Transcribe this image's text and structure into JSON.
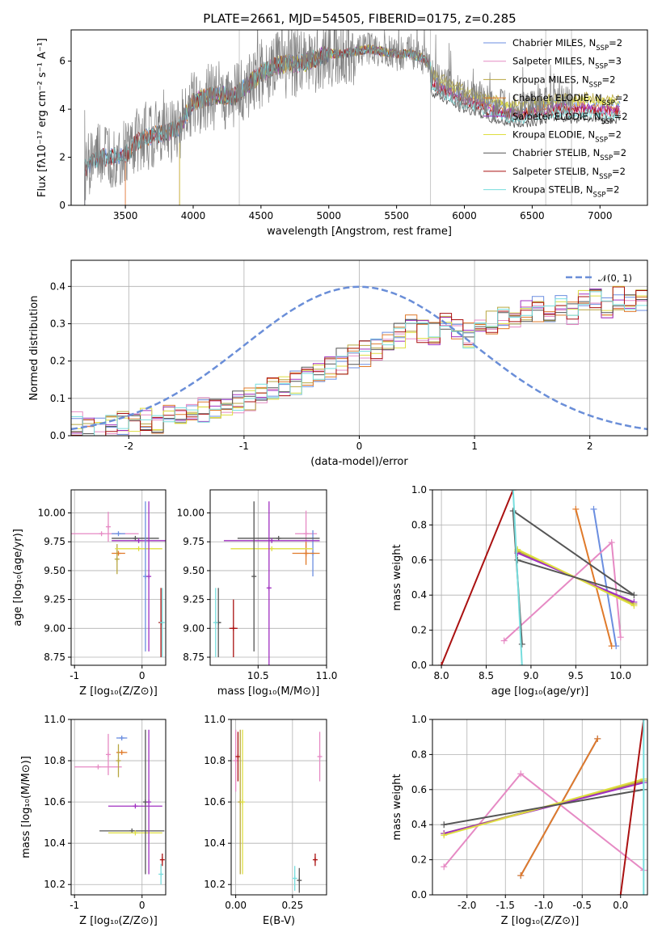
{
  "title": "PLATE=2661, MJD=54505, FIBERID=0175, z=0.285",
  "colors": {
    "chabrier_miles": "#6b8ee0",
    "salpeter_miles": "#e68ac4",
    "kroupa_miles": "#b8a640",
    "chabrier_elodie": "#e07a2a",
    "salpeter_elodie": "#a030c0",
    "kroupa_elodie": "#dede40",
    "chabrier_stelib": "#555555",
    "salpeter_stelib": "#aa1111",
    "kroupa_stelib": "#77dddd",
    "data": "#808080",
    "gaussian": "#6a8ed8"
  },
  "chart_data": [
    {
      "type": "line",
      "name": "spectrum",
      "xlabel": "wavelength [Angstrom, rest frame]",
      "ylabel": "Flux [fλ10⁻¹⁷ erg cm⁻² s⁻¹ A⁻¹]",
      "xlim": [
        3100,
        7350
      ],
      "ylim": [
        0,
        7.3
      ],
      "xticks": [
        3500,
        4000,
        4500,
        5000,
        5500,
        6000,
        6500,
        7000
      ],
      "yticks": [
        0,
        2,
        4,
        6
      ],
      "legend_position": "top-right",
      "legend": [
        {
          "label": "Chabrier MILES, N",
          "sub": "SSP",
          "suffix": "=2",
          "color_key": "chabrier_miles"
        },
        {
          "label": "Salpeter MILES, N",
          "sub": "SSP",
          "suffix": "=3",
          "color_key": "salpeter_miles"
        },
        {
          "label": "Kroupa MILES, N",
          "sub": "SSP",
          "suffix": "=2",
          "color_key": "kroupa_miles"
        },
        {
          "label": "Chabrier ELODIE, N",
          "sub": "SSP",
          "suffix": "=2",
          "color_key": "chabrier_elodie"
        },
        {
          "label": "Salpeter ELODIE, N",
          "sub": "SSP",
          "suffix": "=2",
          "color_key": "salpeter_elodie"
        },
        {
          "label": "Kroupa ELODIE, N",
          "sub": "SSP",
          "suffix": "=2",
          "color_key": "kroupa_elodie"
        },
        {
          "label": "Chabrier STELIB, N",
          "sub": "SSP",
          "suffix": "=2",
          "color_key": "chabrier_stelib"
        },
        {
          "label": "Salpeter STELIB, N",
          "sub": "SSP",
          "suffix": "=2",
          "color_key": "salpeter_stelib"
        },
        {
          "label": "Kroupa STELIB, N",
          "sub": "SSP",
          "suffix": "=2",
          "color_key": "kroupa_stelib"
        }
      ],
      "continuum": {
        "x": [
          3200,
          3300,
          3400,
          3500,
          3600,
          3700,
          3800,
          3900,
          4000,
          4100,
          4200,
          4300,
          4400,
          4500,
          4600,
          4700,
          4800,
          4900,
          5000,
          5100,
          5200,
          5300,
          5400,
          5500,
          5600,
          5700,
          5750,
          5800,
          5900,
          6000,
          6100,
          6200,
          6300,
          6400,
          6500,
          6600,
          6700,
          6800,
          6900,
          7000,
          7100
        ],
        "y": [
          1.5,
          2.0,
          2.0,
          2.1,
          2.7,
          2.9,
          3.0,
          3.3,
          4.3,
          4.5,
          4.6,
          4.5,
          5.0,
          5.5,
          5.8,
          5.9,
          5.9,
          6.1,
          6.3,
          6.3,
          6.4,
          6.5,
          6.4,
          6.3,
          6.3,
          6.1,
          5.8,
          5.6,
          5.3,
          5.0,
          4.9,
          4.6,
          4.5,
          4.4,
          4.5,
          4.6,
          4.7,
          4.6,
          4.7,
          4.6,
          4.6
        ]
      },
      "model_offsets": {
        "after_5750": [
          0.8,
          0.35,
          1.2,
          0.6,
          0.5,
          1.0,
          -0.2,
          0.3,
          0.1
        ]
      },
      "data_start": {
        "data": 3200,
        "chabrier_miles": 3200,
        "salpeter_miles": 3500,
        "kroupa_miles": 3900,
        "chabrier_elodie": 3500,
        "salpeter_elodie": 3900,
        "kroupa_elodie": 3900,
        "chabrier_stelib": 3200,
        "salpeter_stelib": 3200,
        "kroupa_stelib": 3200
      },
      "data_end": 6800,
      "masked_lines": [
        4340,
        5750,
        6600,
        6790
      ]
    },
    {
      "type": "histogram",
      "name": "residuals",
      "xlabel": "(data-model)/error",
      "ylabel": "Normed distribution",
      "xlim": [
        -2.5,
        2.5
      ],
      "ylim": [
        0,
        0.47
      ],
      "xticks": [
        -2,
        -1,
        0,
        1,
        2
      ],
      "yticks": [
        0.0,
        0.1,
        0.2,
        0.3,
        0.4
      ],
      "grid": true,
      "legend_position": "top-right",
      "gaussian_label": "𝒩(0, 1)",
      "bin_width": 0.1,
      "bin_start": -2.5,
      "profile": [
        0.03,
        0.02,
        0.02,
        0.02,
        0.03,
        0.03,
        0.04,
        0.04,
        0.05,
        0.05,
        0.06,
        0.07,
        0.08,
        0.08,
        0.09,
        0.1,
        0.11,
        0.12,
        0.13,
        0.14,
        0.16,
        0.17,
        0.18,
        0.2,
        0.21,
        0.22,
        0.23,
        0.25,
        0.27,
        0.29,
        0.28,
        0.27,
        0.3,
        0.29,
        0.27,
        0.3,
        0.3,
        0.31,
        0.32,
        0.33,
        0.34,
        0.34,
        0.35,
        0.33,
        0.36,
        0.36,
        0.34,
        0.37,
        0.36,
        0.37,
        0.37,
        0.37,
        0.36,
        0.33,
        0.36,
        0.34,
        0.35,
        0.37,
        0.33,
        0.32,
        0.34,
        0.33,
        0.32,
        0.31,
        0.28,
        0.28,
        0.27,
        0.25,
        0.26,
        0.24,
        0.22,
        0.21,
        0.2,
        0.19,
        0.17,
        0.16,
        0.15,
        0.13,
        0.12,
        0.1,
        0.1,
        0.09,
        0.08,
        0.08,
        0.07,
        0.07,
        0.06,
        0.06,
        0.05,
        0.05,
        0.04,
        0.04,
        0.04,
        0.03,
        0.03,
        0.03,
        0.03,
        0.03,
        0.02,
        0.02
      ]
    },
    {
      "type": "scatter",
      "name": "age-vs-Z",
      "xlabel": "Z [log₁₀(Z/Z⊙)]",
      "ylabel": "age  [log₁₀(age/yr)]",
      "xlim": [
        -1.05,
        0.35
      ],
      "ylim": [
        8.68,
        10.2
      ],
      "xticks": [
        -1,
        0
      ],
      "yticks": [
        8.75,
        9.0,
        9.25,
        9.5,
        9.75,
        10.0
      ],
      "grid": true,
      "errorbars": [
        {
          "color_key": "salpeter_miles",
          "x": -0.6,
          "xerr": 0.55,
          "y": 9.82,
          "yerr": 0.0
        },
        {
          "color_key": "salpeter_miles",
          "x": -0.5,
          "xerr": 0.0,
          "y": 9.88,
          "yerr": 0.13
        },
        {
          "color_key": "chabrier_miles",
          "x": -0.35,
          "xerr": 0.1,
          "y": 9.82,
          "yerr": 0.0
        },
        {
          "color_key": "chabrier_elodie",
          "x": -0.35,
          "xerr": 0.1,
          "y": 9.65,
          "yerr": 0.0
        },
        {
          "color_key": "kroupa_miles",
          "x": -0.37,
          "xerr": 0.0,
          "y": 9.6,
          "yerr": 0.13
        },
        {
          "color_key": "chabrier_stelib",
          "x": -0.1,
          "xerr": 0.35,
          "y": 9.78,
          "yerr": 0.0
        },
        {
          "color_key": "salpeter_elodie",
          "x": -0.05,
          "xerr": 0.4,
          "y": 9.76,
          "yerr": 0.0
        },
        {
          "color_key": "kroupa_elodie",
          "x": -0.05,
          "xerr": 0.35,
          "y": 9.69,
          "yerr": 0.0
        },
        {
          "color_key": "chabrier_miles",
          "x": 0.05,
          "xerr": 0.0,
          "y": 9.45,
          "yerr": 0.65
        },
        {
          "color_key": "salpeter_elodie",
          "x": 0.1,
          "xerr": 0.0,
          "y": 9.45,
          "yerr": 0.65
        },
        {
          "color_key": "salpeter_stelib",
          "x": 0.28,
          "xerr": 0.0,
          "y": 9.05,
          "yerr": 0.3
        },
        {
          "color_key": "kroupa_stelib",
          "x": 0.3,
          "xerr": 0.0,
          "y": 9.05,
          "yerr": 0.3
        }
      ]
    },
    {
      "type": "scatter",
      "name": "age-vs-mass",
      "xlabel": "mass [log₁₀(M/M⊙)]",
      "xlim": [
        10.15,
        11.0
      ],
      "ylim": [
        8.68,
        10.2
      ],
      "xticks": [
        10.5,
        11.0
      ],
      "yticks": [
        8.75,
        9.0,
        9.25,
        9.5,
        9.75,
        10.0
      ],
      "grid": true,
      "errorbars": [
        {
          "color_key": "salpeter_miles",
          "x": 10.85,
          "xerr": 0.08,
          "y": 9.82,
          "yerr": 0.2
        },
        {
          "color_key": "chabrier_miles",
          "x": 10.9,
          "xerr": 0.0,
          "y": 9.65,
          "yerr": 0.2
        },
        {
          "color_key": "chabrier_elodie",
          "x": 10.85,
          "xerr": 0.1,
          "y": 9.65,
          "yerr": 0.1
        },
        {
          "color_key": "chabrier_stelib",
          "x": 10.65,
          "xerr": 0.3,
          "y": 9.78,
          "yerr": 0.0
        },
        {
          "color_key": "salpeter_elodie",
          "x": 10.6,
          "xerr": 0.35,
          "y": 9.76,
          "yerr": 0.0
        },
        {
          "color_key": "kroupa_elodie",
          "x": 10.6,
          "xerr": 0.3,
          "y": 9.69,
          "yerr": 0.0
        },
        {
          "color_key": "chabrier_stelib",
          "x": 10.47,
          "xerr": 0.0,
          "y": 9.45,
          "yerr": 0.65
        },
        {
          "color_key": "salpeter_elodie",
          "x": 10.58,
          "xerr": 0.0,
          "y": 9.35,
          "yerr": 0.75
        },
        {
          "color_key": "salpeter_stelib",
          "x": 10.32,
          "xerr": 0.03,
          "y": 9.0,
          "yerr": 0.25
        },
        {
          "color_key": "chabrier_stelib",
          "x": 10.21,
          "xerr": 0.02,
          "y": 9.05,
          "yerr": 0.3
        },
        {
          "color_key": "kroupa_stelib",
          "x": 10.19,
          "xerr": 0.0,
          "y": 9.05,
          "yerr": 0.3
        }
      ]
    },
    {
      "type": "line",
      "name": "mass-weight-vs-age",
      "xlabel": "age  [log₁₀(age/yr)]",
      "ylabel": "mass weight",
      "xlim": [
        7.9,
        10.3
      ],
      "ylim": [
        0.0,
        1.0
      ],
      "xticks": [
        8.0,
        8.5,
        9.0,
        9.5,
        10.0
      ],
      "yticks": [
        0.0,
        0.2,
        0.4,
        0.6,
        0.8,
        1.0
      ],
      "grid": true,
      "series": [
        {
          "color_key": "chabrier_miles",
          "x": [
            9.7,
            9.95
          ],
          "y": [
            0.89,
            0.11
          ]
        },
        {
          "color_key": "salpeter_miles",
          "x": [
            8.7,
            9.9,
            10.0
          ],
          "y": [
            0.14,
            0.7,
            0.16
          ]
        },
        {
          "color_key": "kroupa_miles",
          "x": [
            8.85,
            10.15
          ],
          "y": [
            0.65,
            0.35
          ]
        },
        {
          "color_key": "chabrier_elodie",
          "x": [
            9.5,
            9.9
          ],
          "y": [
            0.89,
            0.11
          ]
        },
        {
          "color_key": "salpeter_elodie",
          "x": [
            8.85,
            10.15
          ],
          "y": [
            0.64,
            0.36
          ]
        },
        {
          "color_key": "kroupa_elodie",
          "x": [
            8.85,
            10.15
          ],
          "y": [
            0.66,
            0.34
          ]
        },
        {
          "color_key": "chabrier_stelib",
          "x": [
            8.85,
            10.15,
            8.8,
            8.9
          ],
          "y": [
            0.6,
            0.4,
            0.88,
            0.12
          ]
        },
        {
          "color_key": "salpeter_stelib",
          "x": [
            8.0,
            8.8
          ],
          "y": [
            0.0,
            1.0
          ]
        },
        {
          "color_key": "kroupa_stelib",
          "x": [
            8.8,
            8.9
          ],
          "y": [
            1.0,
            0.0
          ]
        }
      ]
    },
    {
      "type": "scatter",
      "name": "mass-vs-Z",
      "xlabel": "Z [log₁₀(Z/Z⊙)]",
      "ylabel": "mass [log₁₀(M/M⊙)]",
      "xlim": [
        -1.05,
        0.35
      ],
      "ylim": [
        10.15,
        11.0
      ],
      "xticks": [
        -1,
        0
      ],
      "yticks": [
        10.2,
        10.4,
        10.6,
        10.8,
        11.0
      ],
      "grid": true,
      "errorbars": [
        {
          "color_key": "salpeter_miles",
          "x": -0.65,
          "xerr": 0.35,
          "y": 10.77,
          "yerr": 0.0
        },
        {
          "color_key": "salpeter_miles",
          "x": -0.5,
          "xerr": 0.0,
          "y": 10.83,
          "yerr": 0.1
        },
        {
          "color_key": "chabrier_miles",
          "x": -0.3,
          "xerr": 0.08,
          "y": 10.91,
          "yerr": 0.0
        },
        {
          "color_key": "chabrier_elodie",
          "x": -0.3,
          "xerr": 0.08,
          "y": 10.84,
          "yerr": 0.0
        },
        {
          "color_key": "kroupa_miles",
          "x": -0.35,
          "xerr": 0.0,
          "y": 10.8,
          "yerr": 0.08
        },
        {
          "color_key": "salpeter_elodie",
          "x": -0.1,
          "xerr": 0.4,
          "y": 10.58,
          "yerr": 0.0
        },
        {
          "color_key": "chabrier_stelib",
          "x": -0.15,
          "xerr": 0.48,
          "y": 10.46,
          "yerr": 0.0
        },
        {
          "color_key": "kroupa_elodie",
          "x": -0.1,
          "xerr": 0.4,
          "y": 10.45,
          "yerr": 0.0
        },
        {
          "color_key": "chabrier_stelib",
          "x": 0.05,
          "xerr": 0.0,
          "y": 10.6,
          "yerr": 0.35
        },
        {
          "color_key": "salpeter_elodie",
          "x": 0.1,
          "xerr": 0.0,
          "y": 10.6,
          "yerr": 0.35
        },
        {
          "color_key": "salpeter_stelib",
          "x": 0.3,
          "xerr": 0.0,
          "y": 10.32,
          "yerr": 0.03
        },
        {
          "color_key": "kroupa_stelib",
          "x": 0.28,
          "xerr": 0.0,
          "y": 10.25,
          "yerr": 0.05
        }
      ]
    },
    {
      "type": "scatter",
      "name": "mass-vs-EBV",
      "xlabel": "E(B-V)",
      "xlim": [
        -0.02,
        0.4
      ],
      "ylim": [
        10.15,
        11.0
      ],
      "xticks": [
        0.0,
        0.25
      ],
      "yticks": [
        10.2,
        10.4,
        10.6,
        10.8,
        11.0
      ],
      "grid": true,
      "errorbars": [
        {
          "color_key": "salpeter_miles",
          "x": 0.0,
          "xerr": 0.0,
          "y": 10.8,
          "yerr": 0.15
        },
        {
          "color_key": "salpeter_stelib",
          "x": 0.01,
          "xerr": 0.0,
          "y": 10.82,
          "yerr": 0.12
        },
        {
          "color_key": "kroupa_miles",
          "x": 0.02,
          "xerr": 0.0,
          "y": 10.6,
          "yerr": 0.35
        },
        {
          "color_key": "kroupa_elodie",
          "x": 0.03,
          "xerr": 0.0,
          "y": 10.6,
          "yerr": 0.35
        },
        {
          "color_key": "salpeter_miles",
          "x": 0.37,
          "xerr": 0.0,
          "y": 10.82,
          "yerr": 0.12
        },
        {
          "color_key": "salpeter_stelib",
          "x": 0.35,
          "xerr": 0.0,
          "y": 10.32,
          "yerr": 0.03
        },
        {
          "color_key": "kroupa_stelib",
          "x": 0.26,
          "xerr": 0.0,
          "y": 10.23,
          "yerr": 0.06
        },
        {
          "color_key": "chabrier_stelib",
          "x": 0.28,
          "xerr": 0.0,
          "y": 10.22,
          "yerr": 0.06
        }
      ]
    },
    {
      "type": "line",
      "name": "mass-weight-vs-Z",
      "xlabel": "Z [log₁₀(Z/Z⊙)]",
      "ylabel": "mass weight",
      "xlim": [
        -2.45,
        0.35
      ],
      "ylim": [
        0.0,
        1.0
      ],
      "xticks": [
        -2.0,
        -1.5,
        -1.0,
        -0.5,
        0.0
      ],
      "yticks": [
        0.0,
        0.2,
        0.4,
        0.6,
        0.8,
        1.0
      ],
      "grid": true,
      "series": [
        {
          "color_key": "chabrier_miles",
          "x": [
            -1.3,
            -0.3
          ],
          "y": [
            0.11,
            0.89
          ]
        },
        {
          "color_key": "salpeter_miles",
          "x": [
            -2.3,
            -1.3,
            0.3
          ],
          "y": [
            0.16,
            0.69,
            0.14
          ]
        },
        {
          "color_key": "kroupa_miles",
          "x": [
            -2.3,
            0.3
          ],
          "y": [
            0.35,
            0.65
          ]
        },
        {
          "color_key": "chabrier_elodie",
          "x": [
            -1.3,
            -0.3
          ],
          "y": [
            0.11,
            0.89
          ]
        },
        {
          "color_key": "salpeter_elodie",
          "x": [
            -2.3,
            0.3
          ],
          "y": [
            0.35,
            0.64
          ]
        },
        {
          "color_key": "kroupa_elodie",
          "x": [
            -2.3,
            0.3
          ],
          "y": [
            0.34,
            0.66
          ]
        },
        {
          "color_key": "chabrier_stelib",
          "x": [
            -2.3,
            0.3
          ],
          "y": [
            0.4,
            0.6
          ]
        },
        {
          "color_key": "salpeter_stelib",
          "x": [
            0.0,
            0.3
          ],
          "y": [
            0.0,
            1.0
          ]
        },
        {
          "color_key": "kroupa_stelib",
          "x": [
            0.3,
            0.3
          ],
          "y": [
            0.0,
            1.0
          ]
        }
      ]
    }
  ]
}
